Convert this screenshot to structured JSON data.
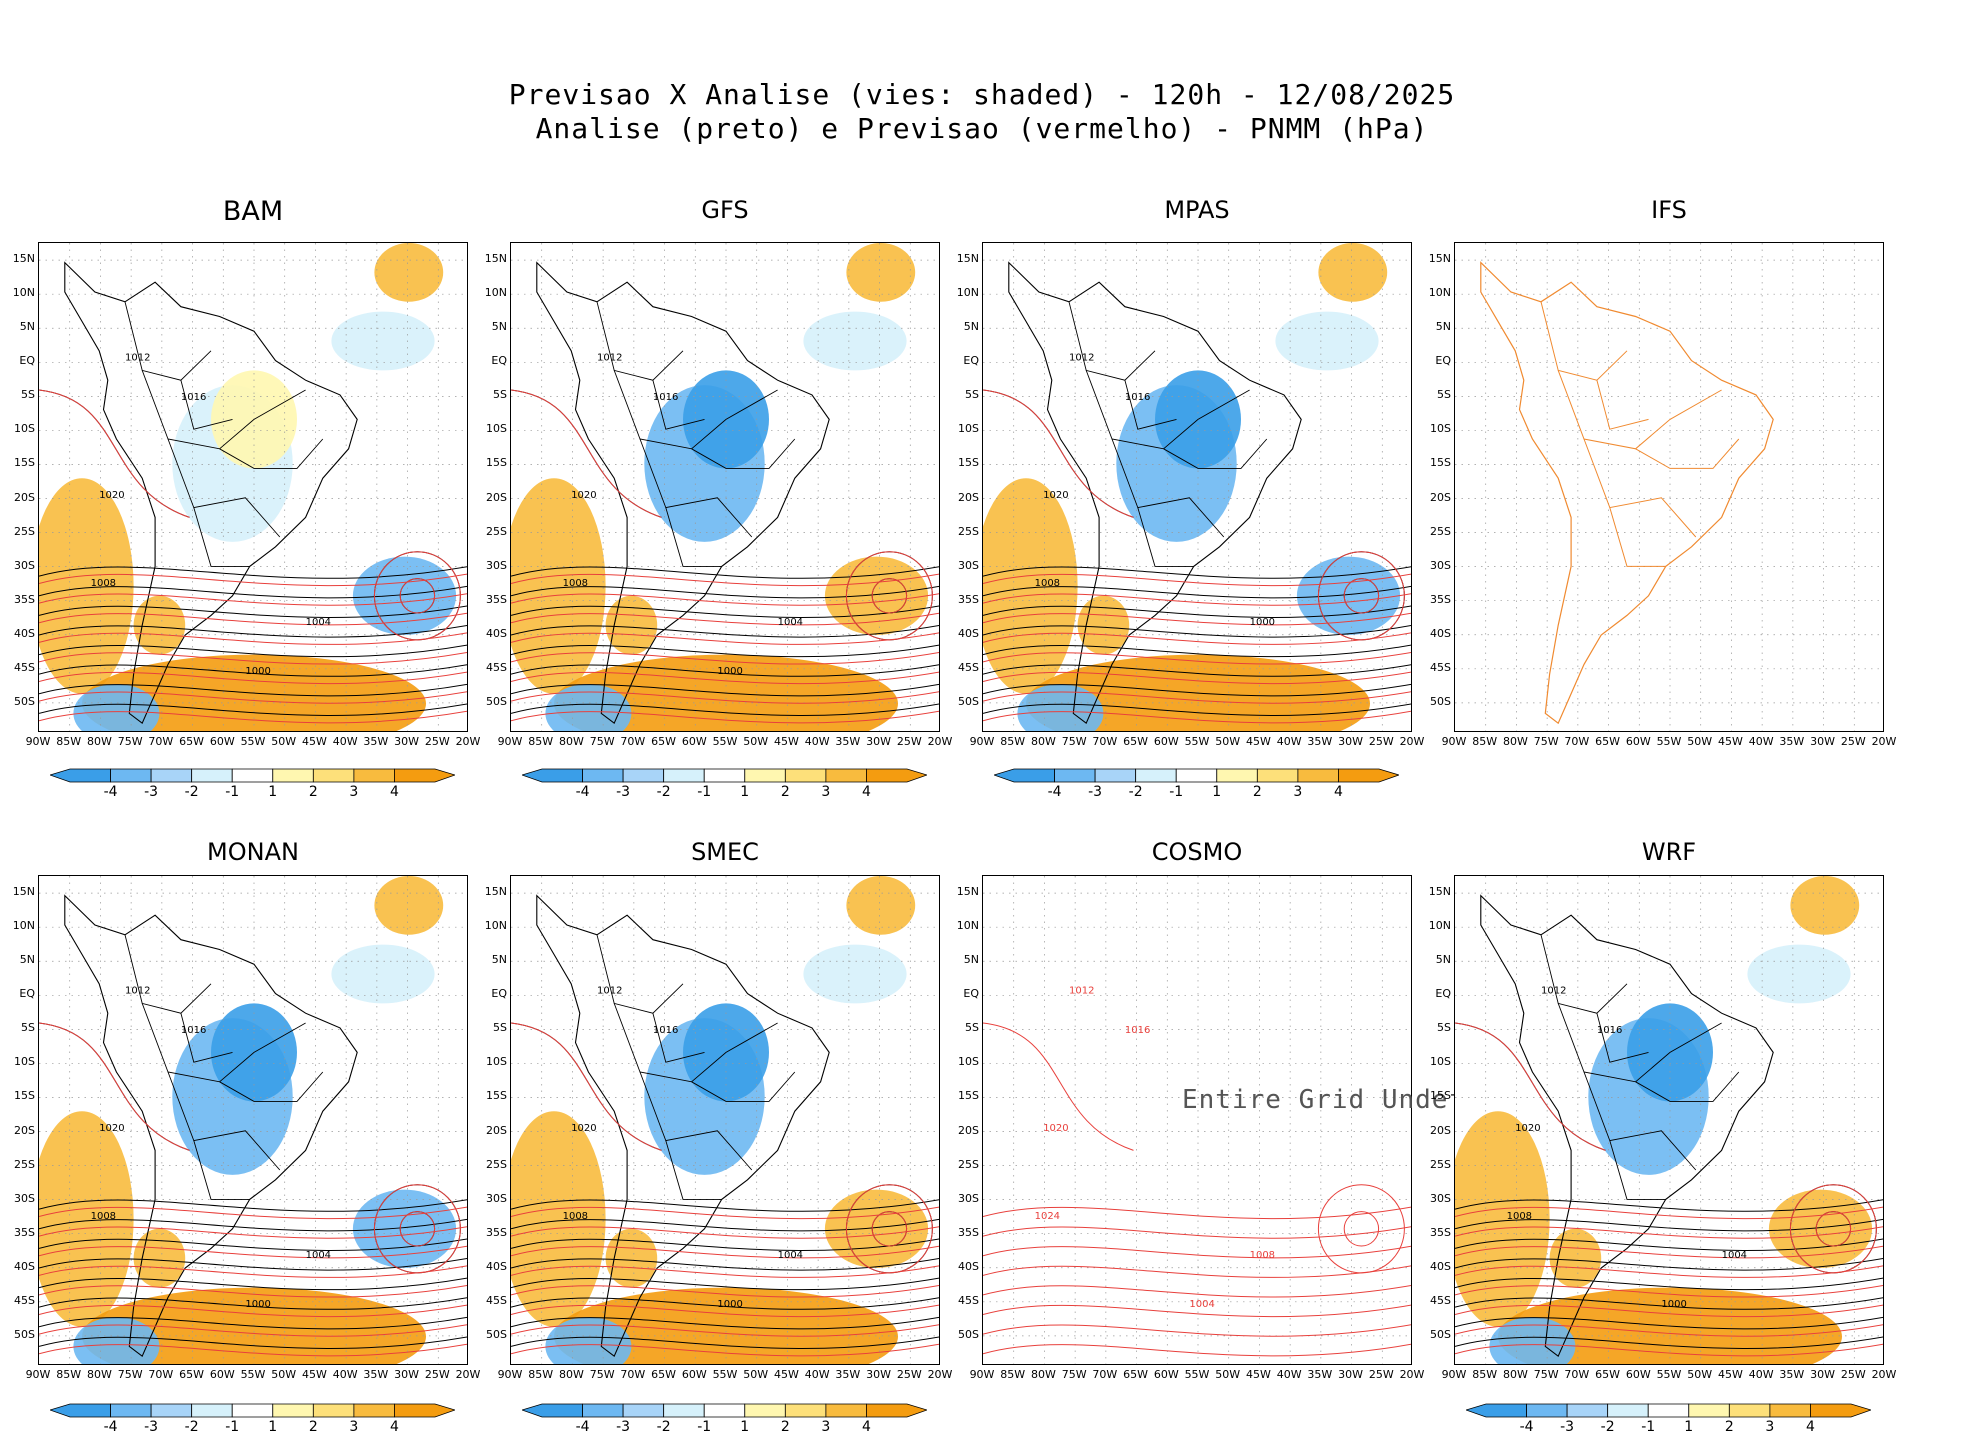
{
  "header": {
    "line1": "Previsao X Analise (vies: shaded) - 120h - 12/08/2025",
    "line2": "Analise (preto) e Previsao (vermelho) - PNMM (hPa)"
  },
  "lat_labels": [
    "15N",
    "10N",
    "5N",
    "EQ",
    "5S",
    "10S",
    "15S",
    "20S",
    "25S",
    "30S",
    "35S",
    "40S",
    "45S",
    "50S"
  ],
  "lon_labels": [
    "90W",
    "85W",
    "80W",
    "75W",
    "70W",
    "65W",
    "60W",
    "55W",
    "50W",
    "45W",
    "40W",
    "35W",
    "30W",
    "25W",
    "20W"
  ],
  "colorbar": {
    "labels": [
      "-4",
      "-3",
      "-2",
      "-1",
      "1",
      "2",
      "3",
      "4"
    ],
    "colors": [
      "#3a9ee8",
      "#6db8f2",
      "#a8d4f8",
      "#d6f1fb",
      "#ffffff",
      "#fff7b0",
      "#fde07a",
      "#f8bb3e",
      "#f49c10"
    ]
  },
  "colors": {
    "analysis": "#000000",
    "forecast": "#e8403c",
    "ifs_coast": "#f08a30"
  },
  "panels": [
    {
      "name": "BAM",
      "title": "BAM",
      "shaded": true,
      "contour_labels": [
        "1012",
        "1016",
        "1020",
        "1008",
        "1004",
        "1000"
      ]
    },
    {
      "name": "GFS",
      "title": "GFS",
      "shaded": true,
      "contour_labels": [
        "1012",
        "1016",
        "1020",
        "1008",
        "1004",
        "1000"
      ]
    },
    {
      "name": "MPAS",
      "title": "MPAS",
      "shaded": true,
      "contour_labels": [
        "1012",
        "1016",
        "1020",
        "1008",
        "1000"
      ]
    },
    {
      "name": "IFS",
      "title": "IFS",
      "shaded": false,
      "contour_labels": []
    },
    {
      "name": "MONAN",
      "title": "MONAN",
      "shaded": true,
      "contour_labels": [
        "1012",
        "1016",
        "1020",
        "1008",
        "1004",
        "1000"
      ]
    },
    {
      "name": "SMEC",
      "title": "SMEC",
      "shaded": true,
      "contour_labels": [
        "1012",
        "1016",
        "1020",
        "1008",
        "1004",
        "1000"
      ]
    },
    {
      "name": "COSMO",
      "title": "COSMO",
      "shaded": false,
      "undef_text": "Entire Grid Undef",
      "contour_labels": [
        "1012",
        "1016",
        "1020",
        "1024",
        "1008",
        "1004"
      ]
    },
    {
      "name": "WRF",
      "title": "WRF",
      "shaded": true,
      "contour_labels": [
        "1012",
        "1016",
        "1020",
        "1008",
        "1004",
        "1000"
      ]
    }
  ]
}
